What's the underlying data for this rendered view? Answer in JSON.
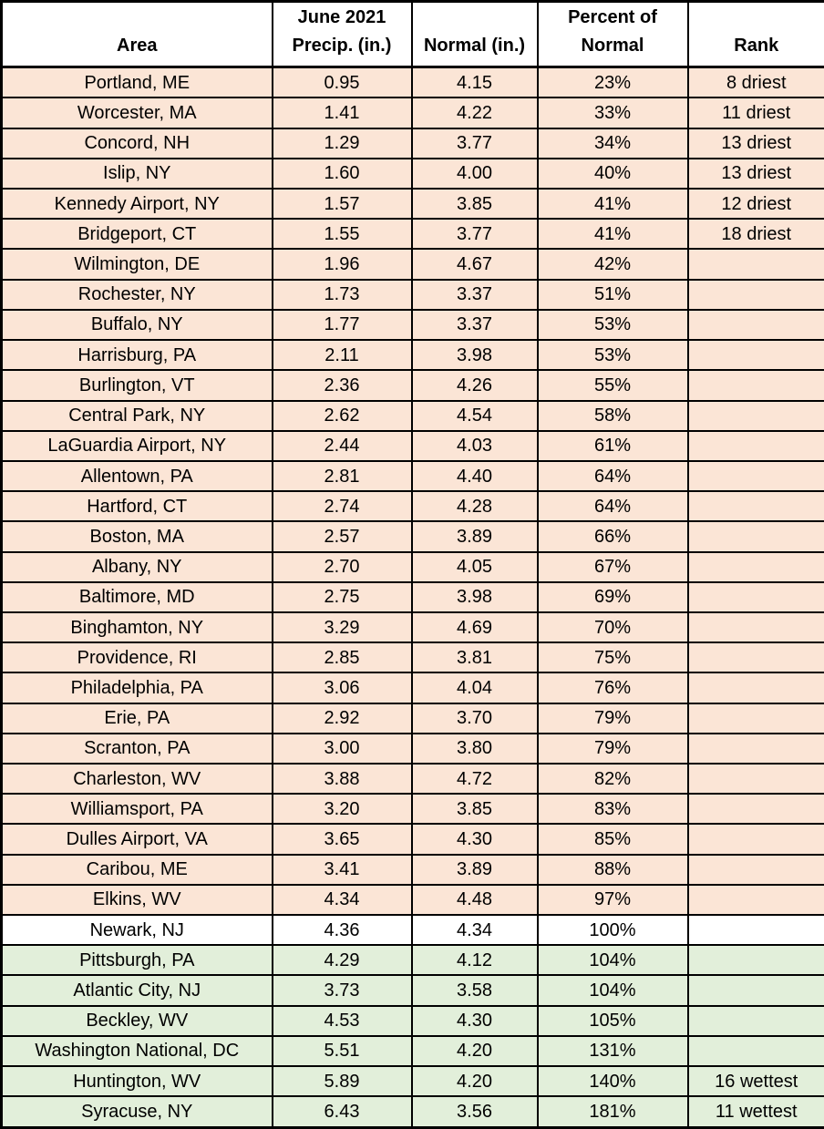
{
  "chart_data": {
    "type": "table",
    "columns": [
      "Area",
      "June 2021 Precip. (in.)",
      "Normal (in.)",
      "Percent of Normal",
      "Rank"
    ],
    "header": {
      "area": "Area",
      "precip_line1": "June 2021",
      "precip_line2": "Precip. (in.)",
      "normal": "Normal (in.)",
      "percent_line1": "Percent of",
      "percent_line2": "Normal",
      "rank": "Rank"
    },
    "rows": [
      {
        "area": "Portland, ME",
        "precip": "0.95",
        "normal": "4.15",
        "percent": "23%",
        "rank": "8 driest",
        "tone": "dry"
      },
      {
        "area": "Worcester, MA",
        "precip": "1.41",
        "normal": "4.22",
        "percent": "33%",
        "rank": "11 driest",
        "tone": "dry"
      },
      {
        "area": "Concord, NH",
        "precip": "1.29",
        "normal": "3.77",
        "percent": "34%",
        "rank": "13 driest",
        "tone": "dry"
      },
      {
        "area": "Islip, NY",
        "precip": "1.60",
        "normal": "4.00",
        "percent": "40%",
        "rank": "13 driest",
        "tone": "dry"
      },
      {
        "area": "Kennedy Airport, NY",
        "precip": "1.57",
        "normal": "3.85",
        "percent": "41%",
        "rank": "12 driest",
        "tone": "dry"
      },
      {
        "area": "Bridgeport, CT",
        "precip": "1.55",
        "normal": "3.77",
        "percent": "41%",
        "rank": "18 driest",
        "tone": "dry"
      },
      {
        "area": "Wilmington, DE",
        "precip": "1.96",
        "normal": "4.67",
        "percent": "42%",
        "rank": "",
        "tone": "dry"
      },
      {
        "area": "Rochester, NY",
        "precip": "1.73",
        "normal": "3.37",
        "percent": "51%",
        "rank": "",
        "tone": "dry"
      },
      {
        "area": "Buffalo, NY",
        "precip": "1.77",
        "normal": "3.37",
        "percent": "53%",
        "rank": "",
        "tone": "dry"
      },
      {
        "area": "Harrisburg, PA",
        "precip": "2.11",
        "normal": "3.98",
        "percent": "53%",
        "rank": "",
        "tone": "dry"
      },
      {
        "area": "Burlington, VT",
        "precip": "2.36",
        "normal": "4.26",
        "percent": "55%",
        "rank": "",
        "tone": "dry"
      },
      {
        "area": "Central Park, NY",
        "precip": "2.62",
        "normal": "4.54",
        "percent": "58%",
        "rank": "",
        "tone": "dry"
      },
      {
        "area": "LaGuardia Airport, NY",
        "precip": "2.44",
        "normal": "4.03",
        "percent": "61%",
        "rank": "",
        "tone": "dry"
      },
      {
        "area": "Allentown, PA",
        "precip": "2.81",
        "normal": "4.40",
        "percent": "64%",
        "rank": "",
        "tone": "dry"
      },
      {
        "area": "Hartford, CT",
        "precip": "2.74",
        "normal": "4.28",
        "percent": "64%",
        "rank": "",
        "tone": "dry"
      },
      {
        "area": "Boston, MA",
        "precip": "2.57",
        "normal": "3.89",
        "percent": "66%",
        "rank": "",
        "tone": "dry"
      },
      {
        "area": "Albany, NY",
        "precip": "2.70",
        "normal": "4.05",
        "percent": "67%",
        "rank": "",
        "tone": "dry"
      },
      {
        "area": "Baltimore, MD",
        "precip": "2.75",
        "normal": "3.98",
        "percent": "69%",
        "rank": "",
        "tone": "dry"
      },
      {
        "area": "Binghamton, NY",
        "precip": "3.29",
        "normal": "4.69",
        "percent": "70%",
        "rank": "",
        "tone": "dry"
      },
      {
        "area": "Providence, RI",
        "precip": "2.85",
        "normal": "3.81",
        "percent": "75%",
        "rank": "",
        "tone": "dry"
      },
      {
        "area": "Philadelphia, PA",
        "precip": "3.06",
        "normal": "4.04",
        "percent": "76%",
        "rank": "",
        "tone": "dry"
      },
      {
        "area": "Erie, PA",
        "precip": "2.92",
        "normal": "3.70",
        "percent": "79%",
        "rank": "",
        "tone": "dry"
      },
      {
        "area": "Scranton, PA",
        "precip": "3.00",
        "normal": "3.80",
        "percent": "79%",
        "rank": "",
        "tone": "dry"
      },
      {
        "area": "Charleston, WV",
        "precip": "3.88",
        "normal": "4.72",
        "percent": "82%",
        "rank": "",
        "tone": "dry"
      },
      {
        "area": "Williamsport, PA",
        "precip": "3.20",
        "normal": "3.85",
        "percent": "83%",
        "rank": "",
        "tone": "dry"
      },
      {
        "area": "Dulles Airport, VA",
        "precip": "3.65",
        "normal": "4.30",
        "percent": "85%",
        "rank": "",
        "tone": "dry"
      },
      {
        "area": "Caribou, ME",
        "precip": "3.41",
        "normal": "3.89",
        "percent": "88%",
        "rank": "",
        "tone": "dry"
      },
      {
        "area": "Elkins, WV",
        "precip": "4.34",
        "normal": "4.48",
        "percent": "97%",
        "rank": "",
        "tone": "dry"
      },
      {
        "area": "Newark, NJ",
        "precip": "4.36",
        "normal": "4.34",
        "percent": "100%",
        "rank": "",
        "tone": "neutral"
      },
      {
        "area": "Pittsburgh, PA",
        "precip": "4.29",
        "normal": "4.12",
        "percent": "104%",
        "rank": "",
        "tone": "wet"
      },
      {
        "area": "Atlantic City, NJ",
        "precip": "3.73",
        "normal": "3.58",
        "percent": "104%",
        "rank": "",
        "tone": "wet"
      },
      {
        "area": "Beckley, WV",
        "precip": "4.53",
        "normal": "4.30",
        "percent": "105%",
        "rank": "",
        "tone": "wet"
      },
      {
        "area": "Washington National, DC",
        "precip": "5.51",
        "normal": "4.20",
        "percent": "131%",
        "rank": "",
        "tone": "wet"
      },
      {
        "area": "Huntington, WV",
        "precip": "5.89",
        "normal": "4.20",
        "percent": "140%",
        "rank": "16 wettest",
        "tone": "wet"
      },
      {
        "area": "Syracuse, NY",
        "precip": "6.43",
        "normal": "3.56",
        "percent": "181%",
        "rank": "11 wettest",
        "tone": "wet"
      }
    ],
    "colors": {
      "below_normal_bg": "#fbe5d6",
      "near_normal_bg": "#ffffff",
      "above_normal_bg": "#e2efda",
      "header_bg": "#ffffff",
      "border": "#000000",
      "text": "#000000"
    },
    "layout": {
      "grid": "on",
      "tone_meaning": {
        "dry": "below normal precipitation",
        "neutral": "near normal precipitation",
        "wet": "above normal precipitation"
      }
    }
  }
}
